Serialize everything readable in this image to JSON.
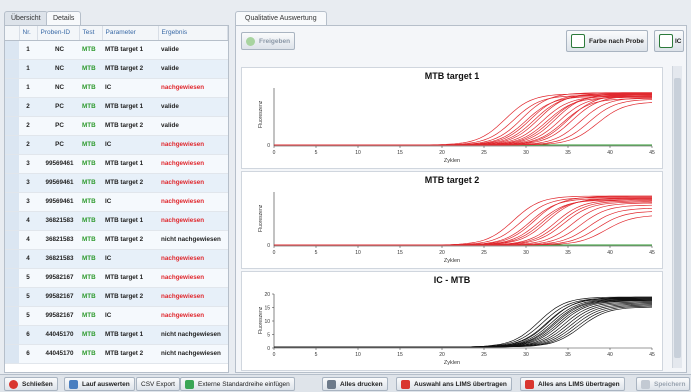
{
  "left_tabs": [
    "Übersicht",
    "Details"
  ],
  "right_tab": "Qualitative Auswertung",
  "table": {
    "headers": [
      "Nr.",
      "Proben-ID",
      "Test",
      "Parameter",
      "Ergebnis"
    ],
    "rows": [
      {
        "nr": "1",
        "id": "NC",
        "test": "MTB",
        "param": "MTB target 1",
        "result": "valide",
        "red": false
      },
      {
        "nr": "1",
        "id": "NC",
        "test": "MTB",
        "param": "MTB target 2",
        "result": "valide",
        "red": false
      },
      {
        "nr": "1",
        "id": "NC",
        "test": "MTB",
        "param": "IC",
        "result": "nachgewiesen",
        "red": true
      },
      {
        "nr": "2",
        "id": "PC",
        "test": "MTB",
        "param": "MTB target 1",
        "result": "valide",
        "red": false
      },
      {
        "nr": "2",
        "id": "PC",
        "test": "MTB",
        "param": "MTB target 2",
        "result": "valide",
        "red": false
      },
      {
        "nr": "2",
        "id": "PC",
        "test": "MTB",
        "param": "IC",
        "result": "nachgewiesen",
        "red": true
      },
      {
        "nr": "3",
        "id": "99569461",
        "test": "MTB",
        "param": "MTB target 1",
        "result": "nachgewiesen",
        "red": true
      },
      {
        "nr": "3",
        "id": "99569461",
        "test": "MTB",
        "param": "MTB target 2",
        "result": "nachgewiesen",
        "red": true
      },
      {
        "nr": "3",
        "id": "99569461",
        "test": "MTB",
        "param": "IC",
        "result": "nachgewiesen",
        "red": true
      },
      {
        "nr": "4",
        "id": "36821583",
        "test": "MTB",
        "param": "MTB target 1",
        "result": "nachgewiesen",
        "red": true
      },
      {
        "nr": "4",
        "id": "36821583",
        "test": "MTB",
        "param": "MTB target 2",
        "result": "nicht nachgewiesen",
        "red": false
      },
      {
        "nr": "4",
        "id": "36821583",
        "test": "MTB",
        "param": "IC",
        "result": "nachgewiesen",
        "red": true
      },
      {
        "nr": "5",
        "id": "99582167",
        "test": "MTB",
        "param": "MTB target 1",
        "result": "nachgewiesen",
        "red": true
      },
      {
        "nr": "5",
        "id": "99582167",
        "test": "MTB",
        "param": "MTB target 2",
        "result": "nachgewiesen",
        "red": true
      },
      {
        "nr": "5",
        "id": "99582167",
        "test": "MTB",
        "param": "IC",
        "result": "nachgewiesen",
        "red": true
      },
      {
        "nr": "6",
        "id": "44045170",
        "test": "MTB",
        "param": "MTB target 1",
        "result": "nicht nachgewiesen",
        "red": false
      },
      {
        "nr": "6",
        "id": "44045170",
        "test": "MTB",
        "param": "MTB target 2",
        "result": "nicht nachgewiesen",
        "red": false
      }
    ]
  },
  "right_toolbar": {
    "release": "Freigeben",
    "color_by_sample": "Farbe nach Probe",
    "ic": "IC"
  },
  "plots": [
    {
      "title": "MTB target 1",
      "ylabel": "Fluoreszenz",
      "xlabel": "Zyklen",
      "yticks": [],
      "color": "#e0282e"
    },
    {
      "title": "MTB target 2",
      "ylabel": "Fluoreszenz",
      "xlabel": "Zyklen",
      "yticks": [],
      "color": "#e0282e"
    },
    {
      "title": "IC - MTB",
      "ylabel": "Fluoreszenz",
      "xlabel": "Zyklen",
      "yticks": [
        "20",
        "15",
        "10",
        "5",
        "0"
      ],
      "color": "#111111"
    }
  ],
  "xticks": [
    "0",
    "5",
    "10",
    "15",
    "20",
    "25",
    "30",
    "35",
    "40",
    "45"
  ],
  "bottom": {
    "close": "Schließen",
    "evaluate": "Lauf auswerten",
    "csv": "CSV Export",
    "ext_std": "Externe Standardreihe einfügen",
    "print_all": "Alles drucken",
    "lims_selection": "Auswahl ans LIMS übertragen",
    "lims_all": "Alles ans LIMS übertragen",
    "save": "Speichern"
  },
  "colors": {
    "accent_red": "#e0282e",
    "test_green": "#2e9a2e",
    "header_blue": "#3a6aa6",
    "baseline_green": "#2e9a2e"
  }
}
